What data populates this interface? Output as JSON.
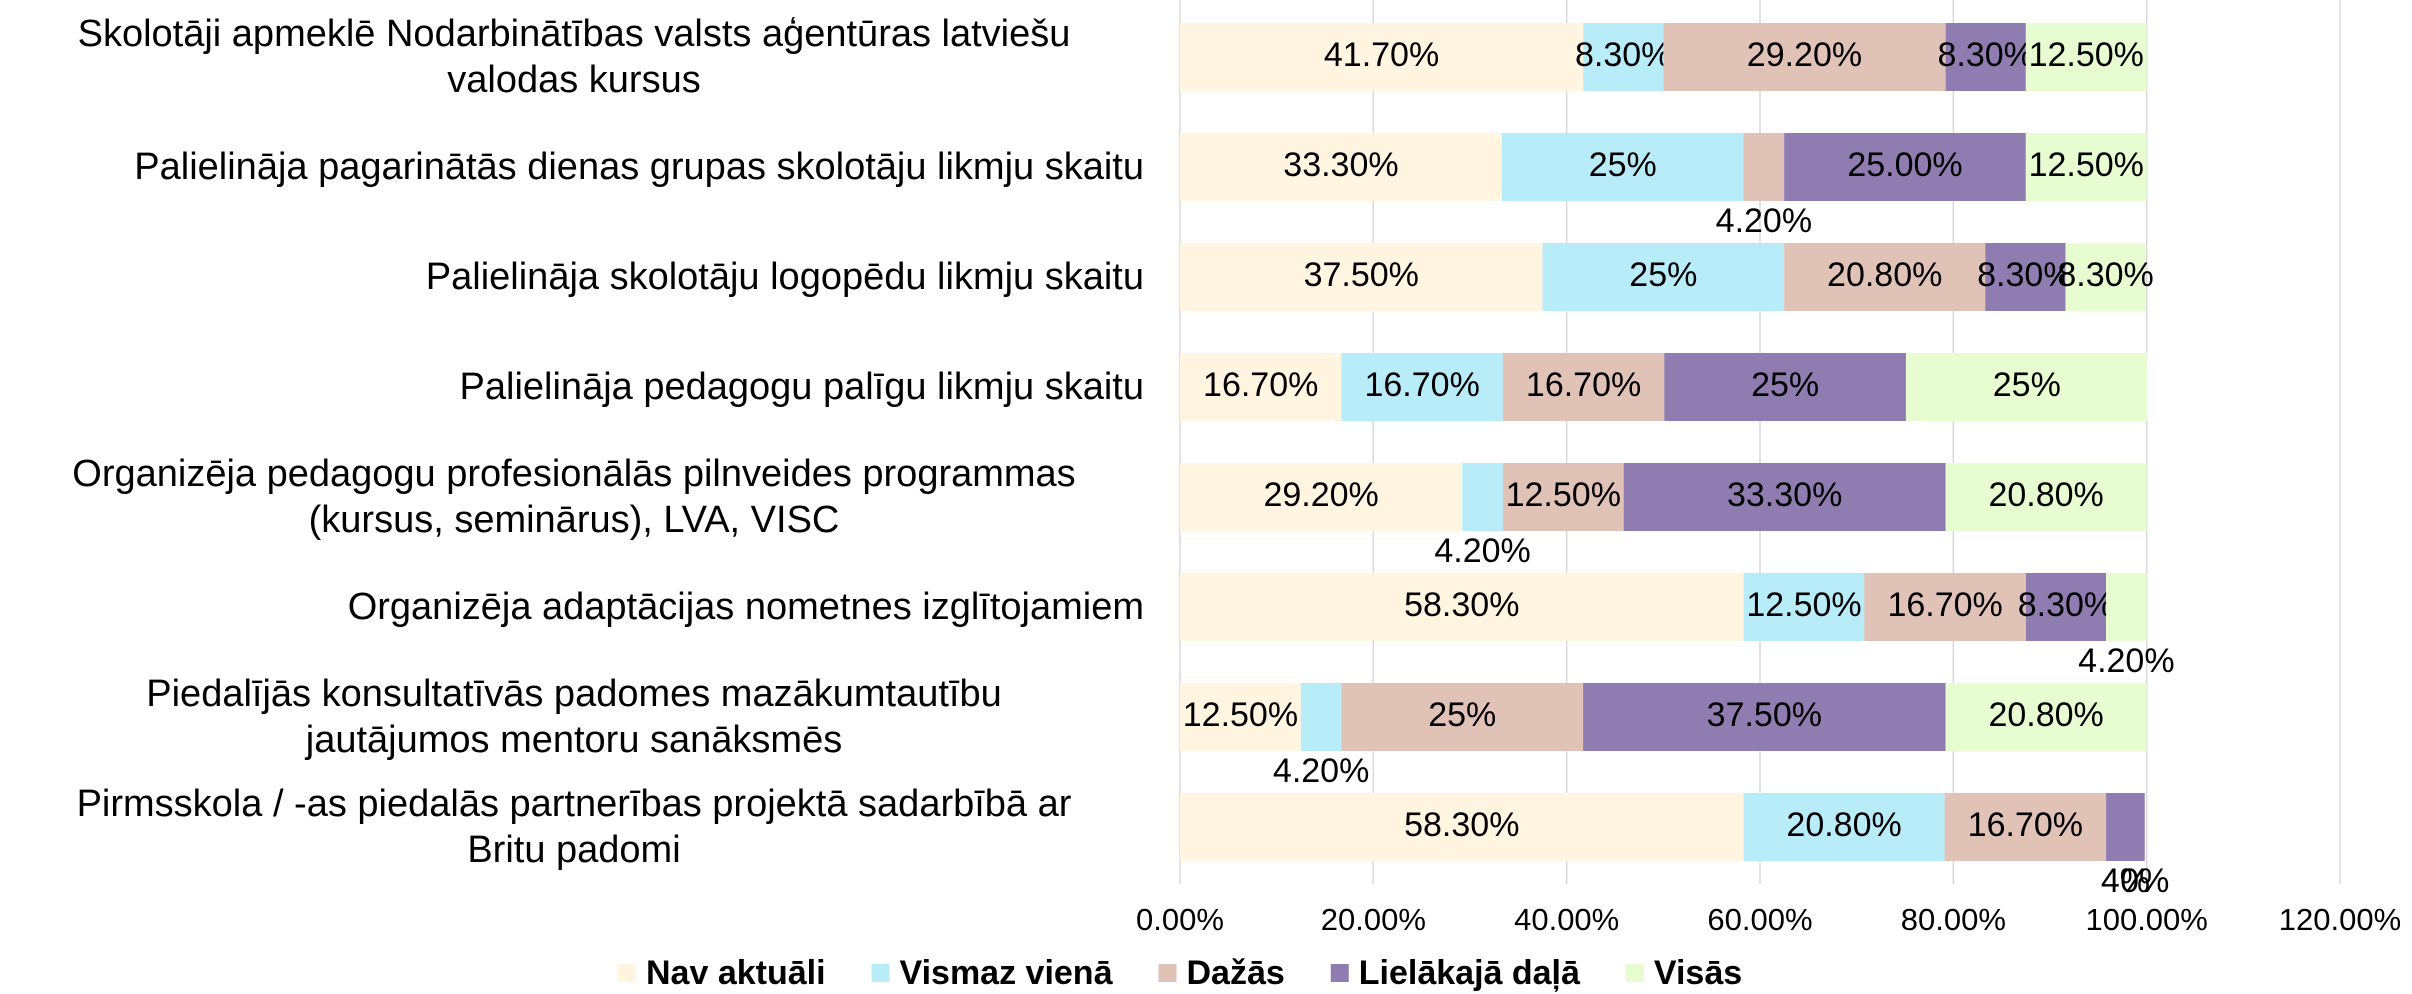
{
  "chart_data": {
    "type": "stacked_barh",
    "categories": [
      "Skolotāji apmeklē Nodarbinātības valsts aģentūras latviešu\nvalodas kursus",
      "Palielināja pagarinātās dienas grupas skolotāju likmju skaitu",
      "Palielināja skolotāju logopēdu likmju skaitu ",
      "Palielināja pedagogu palīgu likmju skaitu",
      "Organizēja pedagogu profesionālās pilnveides programmas\n(kursus, seminārus), LVA, VISC",
      "Organizēja adaptācijas nometnes izglītojamiem",
      "Piedalījās konsultatīvās padomes mazākumtautību\njautājumos mentoru sanāksmēs",
      "Pirmsskola / -as piedalās partnerības projektā sadarbībā ar\nBritu padomi"
    ],
    "series": [
      {
        "name": "Nav aktuāli",
        "color": "#fff5e1",
        "values": [
          41.7,
          33.3,
          37.5,
          16.7,
          29.2,
          58.3,
          12.5,
          58.3
        ],
        "value_labels": [
          "41.70%",
          "33.30%",
          "37.50%",
          "16.70%",
          "29.20%",
          "58.30%",
          "12.50%",
          "58.30%"
        ]
      },
      {
        "name": "Vismaz vienā",
        "color": "#b9ecf9",
        "values": [
          8.3,
          25,
          25,
          16.7,
          4.2,
          12.5,
          4.2,
          20.8
        ],
        "value_labels": [
          "8.30%",
          "25%",
          "25%",
          "16.70%",
          "4.20%",
          "12.50%",
          "4.20%",
          "20.80%"
        ]
      },
      {
        "name": "Dažās",
        "color": "#e1c2b6",
        "values": [
          29.2,
          4.2,
          20.8,
          16.7,
          12.5,
          16.7,
          25,
          16.7
        ],
        "value_labels": [
          "29.20%",
          "4.20%",
          "20.80%",
          "16.70%",
          "12.50%",
          "16.70%",
          "25%",
          "16.70%"
        ]
      },
      {
        "name": "Lielākajā daļā",
        "color": "#8f7cb1",
        "values": [
          8.3,
          25,
          8.3,
          25,
          33.3,
          8.3,
          37.5,
          4
        ],
        "value_labels": [
          "8.30%",
          "25.00%",
          "8.30%",
          "25%",
          "33.30%",
          "8.30%",
          "37.50%",
          "4%"
        ]
      },
      {
        "name": "Visās",
        "color": "#e7fcd1",
        "values": [
          12.5,
          12.5,
          8.3,
          25,
          20.8,
          4.2,
          20.8,
          0
        ],
        "value_labels": [
          "12.50%",
          "12.50%",
          "8.30%",
          "25%",
          "20.80%",
          "4.20%",
          "20.80%",
          "0%"
        ]
      }
    ],
    "xlim": [
      0,
      120
    ],
    "xticks": [
      {
        "value": 0,
        "label": "0.00%"
      },
      {
        "value": 20,
        "label": "20.00%"
      },
      {
        "value": 40,
        "label": "40.00%"
      },
      {
        "value": 60,
        "label": "60.00%"
      },
      {
        "value": 80,
        "label": "80.00%"
      },
      {
        "value": 100,
        "label": "100.00%"
      },
      {
        "value": 120,
        "label": "120.00%"
      }
    ],
    "grid": true,
    "legend": "bottom"
  }
}
